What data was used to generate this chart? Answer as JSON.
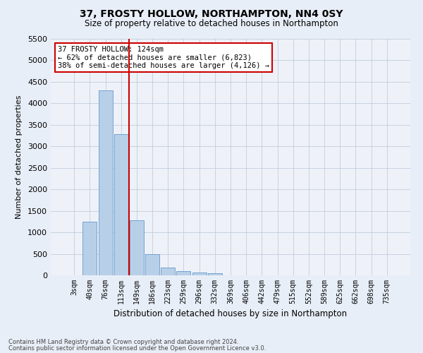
{
  "title": "37, FROSTY HOLLOW, NORTHAMPTON, NN4 0SY",
  "subtitle": "Size of property relative to detached houses in Northampton",
  "xlabel": "Distribution of detached houses by size in Northampton",
  "ylabel": "Number of detached properties",
  "footer_line1": "Contains HM Land Registry data © Crown copyright and database right 2024.",
  "footer_line2": "Contains public sector information licensed under the Open Government Licence v3.0.",
  "annotation_title": "37 FROSTY HOLLOW: 124sqm",
  "annotation_line1": "← 62% of detached houses are smaller (6,823)",
  "annotation_line2": "38% of semi-detached houses are larger (4,126) →",
  "bar_color": "#b8cfe8",
  "bar_edge_color": "#6699cc",
  "vline_color": "#cc0000",
  "vline_x_index": 3.5,
  "categories": [
    "3sqm",
    "40sqm",
    "76sqm",
    "113sqm",
    "149sqm",
    "186sqm",
    "223sqm",
    "259sqm",
    "296sqm",
    "332sqm",
    "369sqm",
    "406sqm",
    "442sqm",
    "479sqm",
    "515sqm",
    "552sqm",
    "589sqm",
    "625sqm",
    "662sqm",
    "698sqm",
    "735sqm"
  ],
  "values": [
    0,
    1250,
    4300,
    3280,
    1280,
    490,
    185,
    100,
    65,
    55,
    0,
    0,
    0,
    0,
    0,
    0,
    0,
    0,
    0,
    0,
    0
  ],
  "ylim": [
    0,
    5500
  ],
  "yticks": [
    0,
    500,
    1000,
    1500,
    2000,
    2500,
    3000,
    3500,
    4000,
    4500,
    5000,
    5500
  ],
  "bg_color": "#e8eef7",
  "plot_bg_color": "#eef2f8",
  "grid_color": "#c0ccdc"
}
